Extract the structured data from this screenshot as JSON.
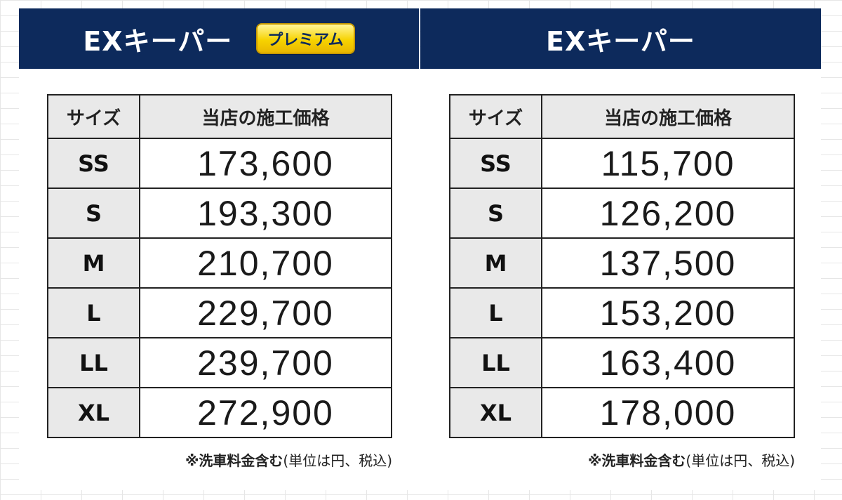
{
  "colors": {
    "header_bg": "#0d2a5c",
    "badge": "#f7d300",
    "header_cell_bg": "#e9e9e9"
  },
  "left_panel": {
    "title": "EXキーパー",
    "badge": "プレミアム",
    "table": {
      "headers": [
        "サイズ",
        "当店の施工価格"
      ],
      "rows": [
        {
          "size": "SS",
          "price": "173,600"
        },
        {
          "size": "S",
          "price": "193,300"
        },
        {
          "size": "M",
          "price": "210,700"
        },
        {
          "size": "L",
          "price": "229,700"
        },
        {
          "size": "LL",
          "price": "239,700"
        },
        {
          "size": "XL",
          "price": "272,900"
        }
      ]
    },
    "note_bold": "※洗車料金含む",
    "note_normal": "(単位は円、税込)"
  },
  "right_panel": {
    "title": "EXキーパー",
    "table": {
      "headers": [
        "サイズ",
        "当店の施工価格"
      ],
      "rows": [
        {
          "size": "SS",
          "price": "115,700"
        },
        {
          "size": "S",
          "price": "126,200"
        },
        {
          "size": "M",
          "price": "137,500"
        },
        {
          "size": "L",
          "price": "153,200"
        },
        {
          "size": "LL",
          "price": "163,400"
        },
        {
          "size": "XL",
          "price": "178,000"
        }
      ]
    },
    "note_bold": "※洗車料金含む",
    "note_normal": "(単位は円、税込)"
  }
}
